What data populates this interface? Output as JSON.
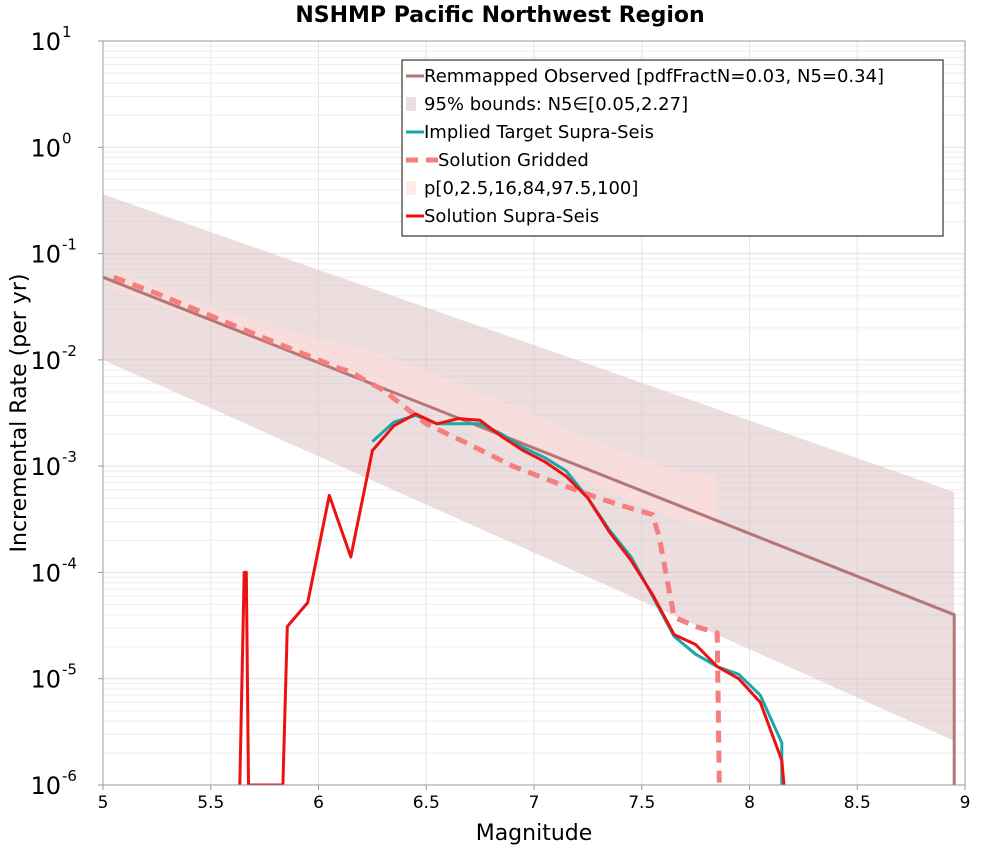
{
  "chart_data": {
    "type": "line",
    "title": "NSHMP Pacific Northwest Region",
    "xlabel": "Magnitude",
    "ylabel": "Incremental Rate (per yr)",
    "xlim": [
      5,
      9
    ],
    "ylim_log10": [
      -6,
      1
    ],
    "yscale": "log",
    "grid": true,
    "legend_position": "top-right",
    "x_ticks": [
      "5",
      "5.5",
      "6",
      "6.5",
      "7",
      "7.5",
      "8",
      "8.5",
      "9"
    ],
    "y_ticks": [
      {
        "base": "10",
        "exp": "-6"
      },
      {
        "base": "10",
        "exp": "-5"
      },
      {
        "base": "10",
        "exp": "-4"
      },
      {
        "base": "10",
        "exp": "-3"
      },
      {
        "base": "10",
        "exp": "-2"
      },
      {
        "base": "10",
        "exp": "-1"
      },
      {
        "base": "10",
        "exp": "0"
      },
      {
        "base": "10",
        "exp": "1"
      }
    ],
    "series": [
      {
        "name": "Remmapped Observed [pdfFractN=0.03, N5=0.34]",
        "kind": "line",
        "color": "#b37776",
        "dashed": false,
        "x": [
          5.0,
          8.95,
          8.95
        ],
        "y": [
          0.06,
          4e-05,
          1e-06
        ]
      },
      {
        "name": "95% bounds: N5∈[0.05,2.27]",
        "kind": "band",
        "color": "#d9bebf",
        "opacity": 0.5,
        "x": [
          5.0,
          8.95
        ],
        "upper": [
          0.36,
          0.00057
        ],
        "lower": [
          0.01,
          2.6e-06
        ]
      },
      {
        "name": "Implied Target Supra-Seis",
        "kind": "line",
        "color": "#1aa7a8",
        "dashed": false,
        "x": [
          6.25,
          6.35,
          6.45,
          6.55,
          6.65,
          6.75,
          6.85,
          6.95,
          7.05,
          7.15,
          7.25,
          7.35,
          7.45,
          7.55,
          7.65,
          7.75,
          7.85,
          7.95,
          8.05,
          8.15,
          8.15
        ],
        "y": [
          0.0017,
          0.0026,
          0.003,
          0.0025,
          0.0025,
          0.0025,
          0.002,
          0.0015,
          0.0012,
          0.0009,
          0.0005,
          0.00025,
          0.00014,
          6e-05,
          2.5e-05,
          1.7e-05,
          1.3e-05,
          1.1e-05,
          7e-06,
          2.5e-06,
          1e-06
        ]
      },
      {
        "name": "Solution Gridded",
        "kind": "line",
        "color": "#f57e7e",
        "dashed": true,
        "x": [
          5.05,
          5.25,
          5.5,
          5.75,
          6.0,
          6.1,
          6.15,
          6.2,
          6.3,
          6.4,
          6.5,
          6.7,
          6.9,
          7.1,
          7.3,
          7.45,
          7.55,
          7.58,
          7.65,
          7.75,
          7.85,
          7.86
        ],
        "y": [
          0.06,
          0.042,
          0.026,
          0.016,
          0.01,
          0.0083,
          0.0077,
          0.0067,
          0.0052,
          0.0036,
          0.0025,
          0.0016,
          0.001,
          0.0007,
          0.0005,
          0.0004,
          0.00035,
          0.00022,
          3.8e-05,
          3.1e-05,
          2.7e-05,
          1e-06
        ]
      },
      {
        "name": "p[0,2.5,16,84,97.5,100]",
        "kind": "band",
        "color": "#ffdcd8",
        "opacity": 0.6,
        "x": [
          5.05,
          5.25,
          5.5,
          5.75,
          6.0,
          6.25,
          6.5,
          6.75,
          7.0,
          7.25,
          7.5,
          7.6,
          7.7,
          7.85
        ],
        "upper": [
          0.07,
          0.05,
          0.032,
          0.022,
          0.016,
          0.012,
          0.008,
          0.005,
          0.003,
          0.0018,
          0.0012,
          0.001,
          0.00088,
          0.0008
        ],
        "lower": [
          0.045,
          0.033,
          0.022,
          0.014,
          0.0095,
          0.006,
          0.0035,
          0.002,
          0.0012,
          0.0007,
          0.00042,
          0.00035,
          0.0003,
          0.00026
        ]
      },
      {
        "name": "Solution Supra-Seis",
        "kind": "line",
        "color": "#ee1111",
        "dashed": false,
        "x": [
          5.635,
          5.655,
          5.665,
          5.675,
          5.835,
          5.855,
          5.95,
          6.05,
          6.15,
          6.25,
          6.35,
          6.45,
          6.55,
          6.65,
          6.75,
          6.85,
          6.95,
          7.05,
          7.15,
          7.25,
          7.35,
          7.45,
          7.55,
          7.65,
          7.75,
          7.85,
          7.95,
          8.05,
          8.15,
          8.16
        ],
        "y": [
          1e-06,
          0.0001,
          0.0001,
          1e-06,
          1e-06,
          3.1e-05,
          5.2e-05,
          0.00053,
          0.00014,
          0.0014,
          0.0024,
          0.0031,
          0.0025,
          0.0028,
          0.0027,
          0.0019,
          0.0014,
          0.0011,
          0.0008,
          0.0005,
          0.00024,
          0.00013,
          6.2e-05,
          2.6e-05,
          2.1e-05,
          1.3e-05,
          1e-05,
          6e-06,
          1.7e-06,
          1e-06
        ]
      }
    ]
  }
}
